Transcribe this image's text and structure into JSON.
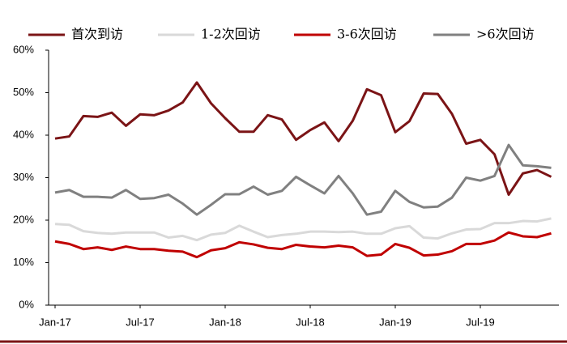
{
  "chart_data": {
    "type": "line",
    "categories": [
      "Jan-17",
      null,
      null,
      null,
      null,
      null,
      "Jul-17",
      null,
      null,
      null,
      null,
      null,
      "Jan-18",
      null,
      null,
      null,
      null,
      null,
      "Jul-18",
      null,
      null,
      null,
      null,
      null,
      "Jan-19",
      null,
      null,
      null,
      null,
      null,
      "Jul-19",
      null,
      null,
      null,
      null,
      null
    ],
    "series": [
      {
        "name": "首次到访",
        "color": "#7b1416",
        "values": [
          39.2,
          39.7,
          44.5,
          44.3,
          45.3,
          42.2,
          44.9,
          44.7,
          45.8,
          47.7,
          52.4,
          47.5,
          44.0,
          40.8,
          40.8,
          44.7,
          43.7,
          38.9,
          41.2,
          43.0,
          38.6,
          43.4,
          50.8,
          49.4,
          40.7,
          43.3,
          49.8,
          49.7,
          45.0,
          38.0,
          38.9,
          35.5,
          26.0,
          31.0,
          31.8,
          30.2
        ]
      },
      {
        "name": "1-2次回访",
        "color": "#d9d9d9",
        "values": [
          19.1,
          18.9,
          17.4,
          17.0,
          16.8,
          17.1,
          17.1,
          17.1,
          15.9,
          16.3,
          15.3,
          16.6,
          17.0,
          18.7,
          17.3,
          16.0,
          16.5,
          16.8,
          17.3,
          17.3,
          17.2,
          17.3,
          16.8,
          16.8,
          18.1,
          18.6,
          15.9,
          15.7,
          16.9,
          17.8,
          17.9,
          19.3,
          19.3,
          19.8,
          19.7,
          20.4
        ]
      },
      {
        "name": "3-6次回访",
        "color": "#c00000",
        "values": [
          15.0,
          14.4,
          13.2,
          13.6,
          13.0,
          13.8,
          13.2,
          13.2,
          12.8,
          12.6,
          11.3,
          12.9,
          13.4,
          14.8,
          14.3,
          13.5,
          13.2,
          14.2,
          13.8,
          13.6,
          14.0,
          13.6,
          11.6,
          11.9,
          14.4,
          13.5,
          11.7,
          11.9,
          12.7,
          14.4,
          14.4,
          15.2,
          17.1,
          16.2,
          16.0,
          16.9
        ]
      },
      {
        "name": ">6次回访",
        "color": "#808080",
        "values": [
          26.5,
          27.1,
          25.5,
          25.5,
          25.3,
          27.1,
          25.0,
          25.2,
          26.0,
          23.9,
          21.3,
          23.6,
          26.1,
          26.1,
          27.9,
          26.0,
          26.9,
          30.2,
          28.2,
          26.3,
          30.4,
          26.3,
          21.3,
          22.0,
          26.9,
          24.3,
          23.0,
          23.2,
          25.3,
          30.0,
          29.3,
          30.4,
          37.7,
          32.9,
          32.7,
          32.3
        ]
      }
    ],
    "ylim": [
      0,
      60
    ],
    "yticks": [
      {
        "value": 0,
        "label": "0%"
      },
      {
        "value": 10,
        "label": "10%"
      },
      {
        "value": 20,
        "label": "20%"
      },
      {
        "value": 30,
        "label": "30%"
      },
      {
        "value": 40,
        "label": "40%"
      },
      {
        "value": 50,
        "label": "50%"
      },
      {
        "value": 60,
        "label": "60%"
      }
    ],
    "legend": "top"
  }
}
